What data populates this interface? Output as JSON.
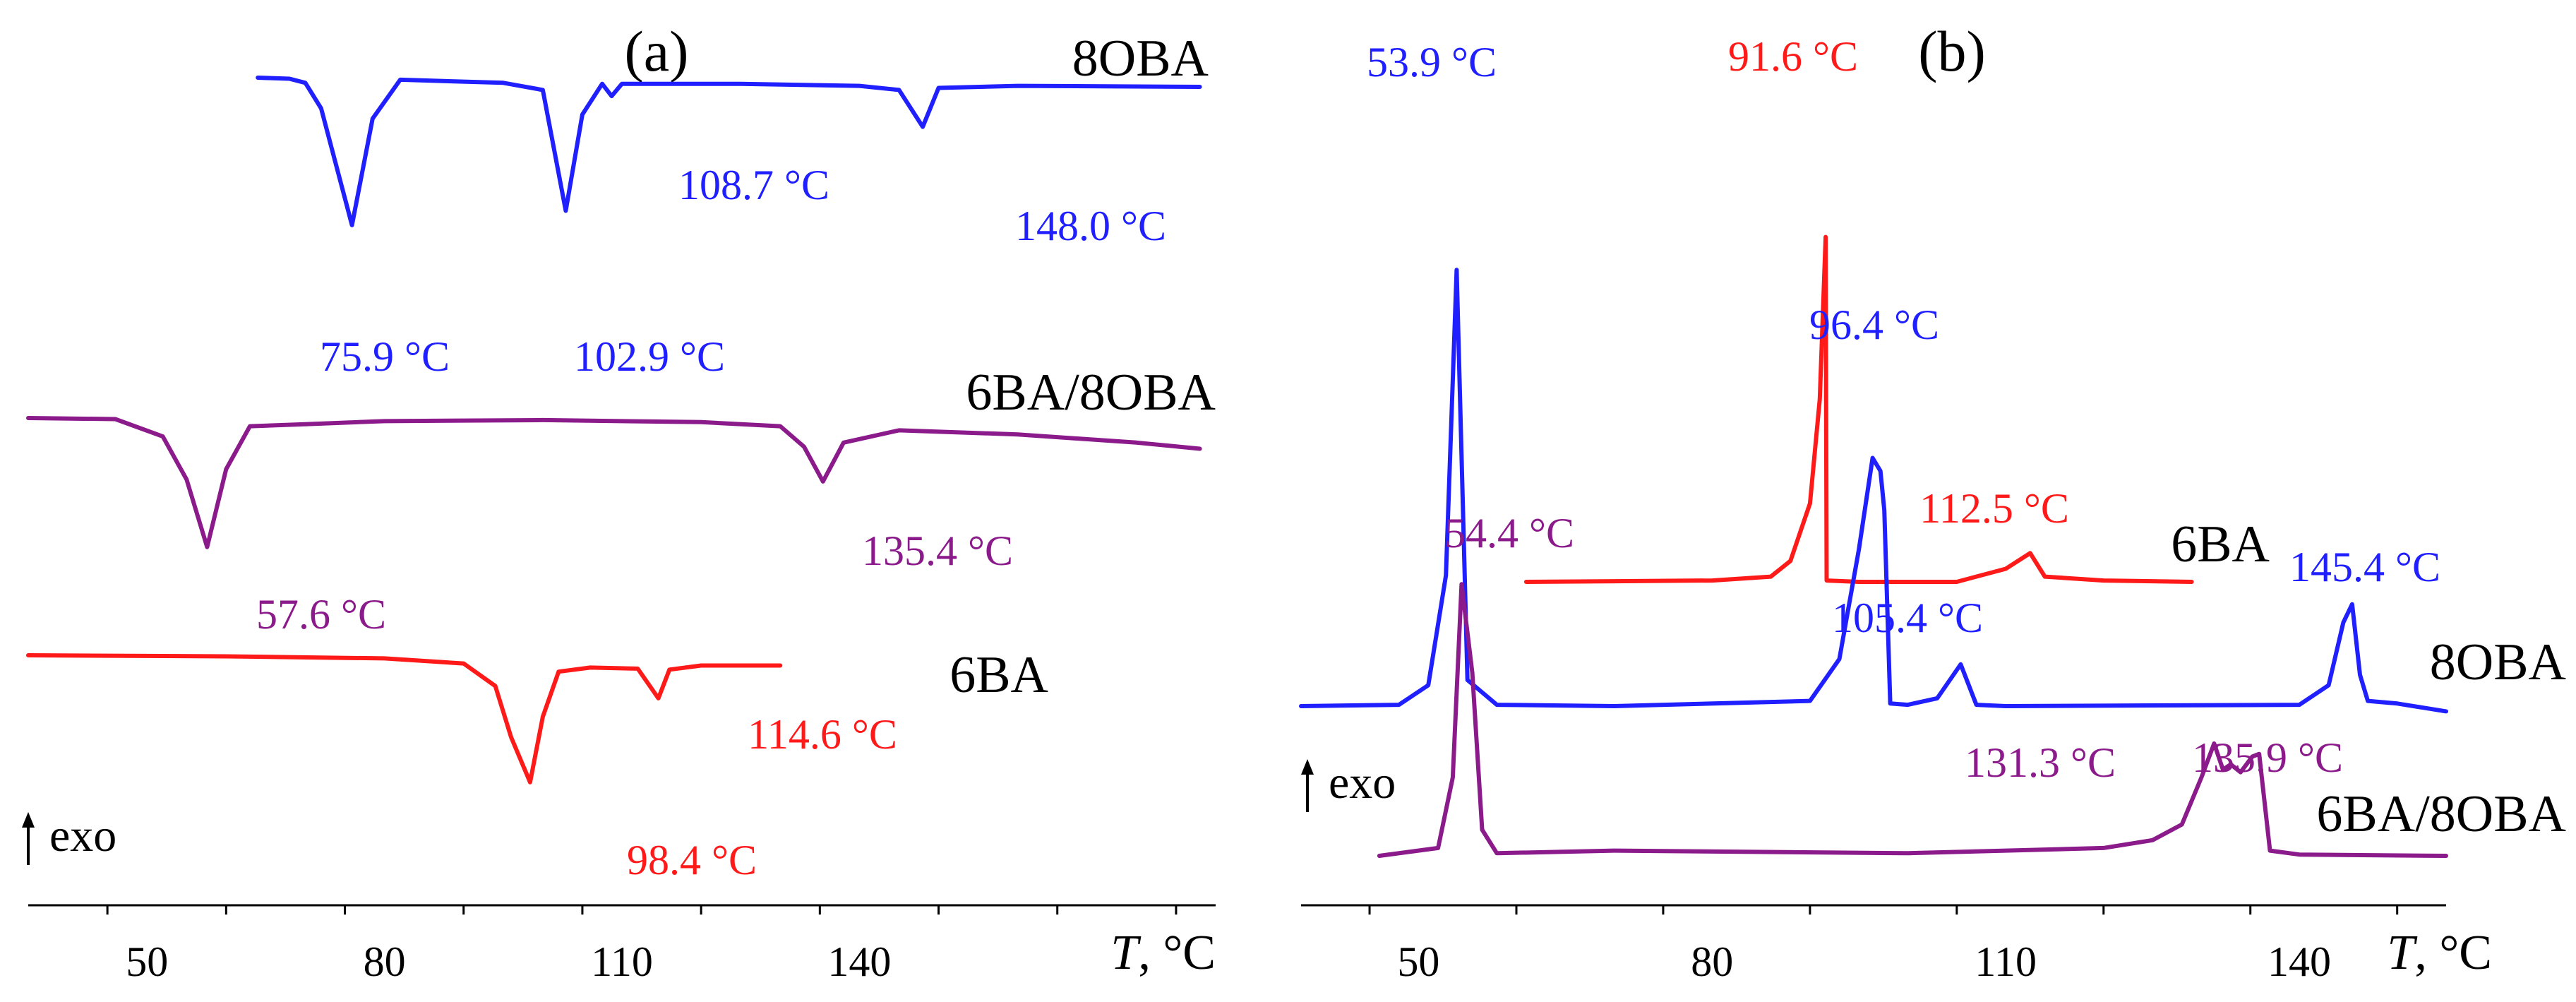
{
  "chart_data": [
    {
      "panel": "(a)",
      "type": "line",
      "xlabel_italic": "T",
      "xlabel_unit": ", °C",
      "xlim": [
        35,
        185
      ],
      "xticks": [
        50,
        80,
        110,
        140
      ],
      "indicator": "exo",
      "series": [
        {
          "name": "8OBA",
          "color": "#1f1fff",
          "x": [
            64,
            68,
            70,
            72,
            75.9,
            78.5,
            82,
            95,
            100,
            102.9,
            105,
            107.5,
            108.7,
            110,
            125,
            140,
            145,
            148,
            150,
            160,
            183
          ],
          "y": [
            0.0,
            -0.05,
            -0.25,
            -1.5,
            -7.2,
            -2.0,
            -0.1,
            -0.25,
            -0.6,
            -6.5,
            -1.8,
            -0.3,
            -0.9,
            -0.3,
            -0.3,
            -0.4,
            -0.6,
            -2.4,
            -0.5,
            -0.4,
            -0.45
          ],
          "peaks": [
            {
              "label": "75.9 °C",
              "x": 75.9
            },
            {
              "label": "102.9 °C",
              "x": 102.9
            },
            {
              "label": "108.7 °C",
              "x": 108.7
            },
            {
              "label": "148.0 °C",
              "x": 148.0
            }
          ]
        },
        {
          "name": "6BA/8OBA",
          "color": "#8b1a8b",
          "x": [
            35,
            46,
            52,
            55,
            57.6,
            60,
            63,
            70,
            80,
            100,
            120,
            130,
            133,
            135.4,
            138,
            145,
            160,
            175,
            183
          ],
          "y": [
            0.0,
            -0.05,
            -0.9,
            -3.0,
            -6.3,
            -2.5,
            -0.4,
            -0.3,
            -0.15,
            -0.1,
            -0.2,
            -0.4,
            -1.4,
            -3.1,
            -1.2,
            -0.6,
            -0.8,
            -1.2,
            -1.5
          ],
          "peaks": [
            {
              "label": "57.6 °C",
              "x": 57.6
            },
            {
              "label": "135.4 °C",
              "x": 135.4
            }
          ]
        },
        {
          "name": "6BA",
          "color": "#ff1a1a",
          "x": [
            35,
            60,
            80,
            90,
            94,
            96,
            98.4,
            100,
            102,
            106,
            112,
            114.6,
            116,
            120,
            130
          ],
          "y": [
            0.0,
            -0.05,
            -0.15,
            -0.4,
            -1.5,
            -4.0,
            -6.2,
            -3.0,
            -0.8,
            -0.6,
            -0.65,
            -2.1,
            -0.7,
            -0.5,
            -0.5
          ],
          "peaks": [
            {
              "label": "98.4 °C",
              "x": 98.4
            },
            {
              "label": "114.6 °C",
              "x": 114.6
            }
          ]
        }
      ]
    },
    {
      "panel": "(b)",
      "type": "line",
      "xlabel_italic": "T",
      "xlabel_unit": ", °C",
      "xlim": [
        38,
        155
      ],
      "xticks": [
        50,
        80,
        110,
        140
      ],
      "indicator": "exo",
      "series": [
        {
          "name": "6BA",
          "color": "#ff1a1a",
          "x": [
            61,
            80,
            86,
            88,
            90,
            91.0,
            91.6,
            91.7,
            95,
            105,
            110,
            112.5,
            114,
            120,
            129
          ],
          "y": [
            0.0,
            0.05,
            0.2,
            0.8,
            3.0,
            7.0,
            13.2,
            0.05,
            0.0,
            0.0,
            0.5,
            1.1,
            0.2,
            0.05,
            0.0
          ],
          "peaks": [
            {
              "label": "91.6 °C",
              "x": 91.6
            },
            {
              "label": "112.5 °C",
              "x": 112.5
            }
          ]
        },
        {
          "name": "8OBA",
          "color": "#1f1fff",
          "x": [
            38,
            48,
            51,
            52.8,
            53.9,
            55.0,
            58,
            70,
            90,
            93,
            95,
            96.4,
            97.2,
            97.6,
            98.2,
            100,
            103,
            105.4,
            107,
            110,
            140,
            143,
            144.5,
            145.4,
            146.2,
            147,
            150,
            155
          ],
          "y": [
            0.0,
            0.05,
            0.8,
            5.0,
            16.7,
            1.0,
            0.05,
            0.0,
            0.2,
            1.8,
            6.0,
            9.5,
            9.0,
            7.5,
            0.1,
            0.05,
            0.3,
            1.6,
            0.05,
            0.0,
            0.05,
            0.8,
            3.2,
            3.9,
            1.2,
            0.2,
            0.1,
            -0.2
          ],
          "peaks": [
            {
              "label": "53.9 °C",
              "x": 53.9
            },
            {
              "label": "96.4 °C",
              "x": 96.4
            },
            {
              "label": "105.4 °C",
              "x": 105.4
            },
            {
              "label": "145.4 °C",
              "x": 145.4
            }
          ]
        },
        {
          "name": "6BA/8OBA",
          "color": "#8b1a8b",
          "x": [
            46,
            52,
            53.5,
            54.4,
            55.5,
            56.5,
            58,
            70,
            100,
            120,
            125,
            128,
            130,
            131.3,
            132.2,
            133,
            134,
            135.2,
            135.9,
            137,
            140,
            155
          ],
          "y": [
            0.0,
            0.3,
            3.0,
            10.4,
            7.0,
            1.0,
            0.1,
            0.2,
            0.1,
            0.3,
            0.6,
            1.2,
            3.0,
            4.3,
            3.3,
            3.5,
            3.2,
            3.8,
            3.9,
            0.2,
            0.05,
            0.0
          ],
          "peaks": [
            {
              "label": "54.4 °C",
              "x": 54.4
            },
            {
              "label": "131.3 °C",
              "x": 131.3
            },
            {
              "label": "135.9 °C",
              "x": 135.9
            }
          ]
        }
      ]
    }
  ]
}
